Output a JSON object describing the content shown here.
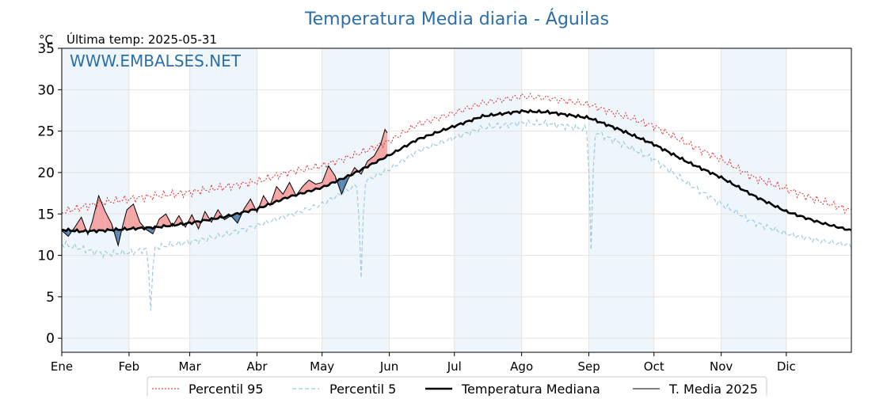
{
  "chart_data": {
    "type": "line",
    "title": "Temperatura Media diaria - Águilas",
    "unit_label": "°C",
    "subtitle": "Última temp: 2025-05-31",
    "watermark": "WWW.EMBALSES.NET",
    "ylim": [
      -1.7,
      35
    ],
    "yticks": [
      0,
      5,
      10,
      15,
      20,
      25,
      30,
      35
    ],
    "x_range_days": [
      1,
      365
    ],
    "month_labels": [
      "Ene",
      "Feb",
      "Mar",
      "Abr",
      "May",
      "Jun",
      "Jul",
      "Ago",
      "Sep",
      "Oct",
      "Nov",
      "Dic"
    ],
    "month_start_days": [
      1,
      32,
      60,
      91,
      121,
      152,
      182,
      213,
      244,
      274,
      305,
      335
    ],
    "grid": true,
    "legend_position": "bottom",
    "colors": {
      "p95": "#e31a1c",
      "p5": "#9ecae1",
      "median": "#000000",
      "current": "#000000",
      "above_fill": "#f4a6a6",
      "below_fill": "#5b86b0",
      "month_band": "#eef5fb",
      "title": "#2c6fa8",
      "watermark": "#2c6fa8"
    },
    "series": [
      {
        "name": "Percentil 95",
        "style": "dotted-red",
        "points": [
          [
            1,
            15.2
          ],
          [
            10,
            15.8
          ],
          [
            20,
            16.4
          ],
          [
            32,
            16.8
          ],
          [
            45,
            17.2
          ],
          [
            60,
            17.6
          ],
          [
            75,
            18.2
          ],
          [
            91,
            18.9
          ],
          [
            105,
            20.0
          ],
          [
            121,
            20.8
          ],
          [
            135,
            22.0
          ],
          [
            152,
            23.8
          ],
          [
            165,
            25.8
          ],
          [
            182,
            27.2
          ],
          [
            195,
            28.4
          ],
          [
            213,
            29.2
          ],
          [
            225,
            29.0
          ],
          [
            244,
            28.2
          ],
          [
            258,
            27.0
          ],
          [
            274,
            25.6
          ],
          [
            290,
            23.4
          ],
          [
            305,
            21.6
          ],
          [
            320,
            19.4
          ],
          [
            335,
            18.0
          ],
          [
            350,
            16.6
          ],
          [
            365,
            15.4
          ]
        ]
      },
      {
        "name": "Percentil 5",
        "style": "dashed-lightblue",
        "points": [
          [
            1,
            11.4
          ],
          [
            10,
            10.8
          ],
          [
            20,
            10.2
          ],
          [
            32,
            10.3
          ],
          [
            45,
            11.0
          ],
          [
            60,
            11.6
          ],
          [
            75,
            12.4
          ],
          [
            91,
            13.6
          ],
          [
            105,
            14.8
          ],
          [
            121,
            16.2
          ],
          [
            135,
            18.2
          ],
          [
            152,
            20.4
          ],
          [
            165,
            22.6
          ],
          [
            182,
            24.2
          ],
          [
            195,
            25.4
          ],
          [
            213,
            26.0
          ],
          [
            225,
            25.9
          ],
          [
            244,
            25.2
          ],
          [
            258,
            23.6
          ],
          [
            274,
            21.6
          ],
          [
            290,
            18.6
          ],
          [
            305,
            16.2
          ],
          [
            320,
            14.0
          ],
          [
            335,
            12.6
          ],
          [
            350,
            11.8
          ],
          [
            365,
            11.2
          ]
        ],
        "dips": [
          [
            42,
            3.3
          ],
          [
            139,
            7.3
          ],
          [
            245,
            10.7
          ]
        ]
      },
      {
        "name": "Temperatura Mediana",
        "style": "thick-black",
        "points": [
          [
            1,
            13.1
          ],
          [
            10,
            12.9
          ],
          [
            20,
            13.0
          ],
          [
            32,
            13.2
          ],
          [
            45,
            13.4
          ],
          [
            60,
            13.9
          ],
          [
            75,
            14.6
          ],
          [
            91,
            15.6
          ],
          [
            105,
            17.0
          ],
          [
            121,
            18.2
          ],
          [
            135,
            19.8
          ],
          [
            152,
            22.1
          ],
          [
            165,
            24.0
          ],
          [
            182,
            25.6
          ],
          [
            195,
            26.8
          ],
          [
            213,
            27.4
          ],
          [
            225,
            27.3
          ],
          [
            244,
            26.6
          ],
          [
            258,
            25.2
          ],
          [
            274,
            23.4
          ],
          [
            290,
            21.2
          ],
          [
            305,
            19.4
          ],
          [
            320,
            17.2
          ],
          [
            335,
            15.3
          ],
          [
            350,
            14.0
          ],
          [
            365,
            13.0
          ]
        ]
      },
      {
        "name": "T. Media 2025",
        "style": "thin-black",
        "points": [
          [
            1,
            13.0
          ],
          [
            4,
            12.3
          ],
          [
            7,
            13.4
          ],
          [
            10,
            14.6
          ],
          [
            13,
            12.5
          ],
          [
            15,
            14.0
          ],
          [
            18,
            17.2
          ],
          [
            21,
            15.3
          ],
          [
            24,
            13.8
          ],
          [
            27,
            11.2
          ],
          [
            29,
            13.5
          ],
          [
            31,
            15.5
          ],
          [
            34,
            16.2
          ],
          [
            37,
            14.0
          ],
          [
            40,
            13.1
          ],
          [
            43,
            12.6
          ],
          [
            46,
            14.4
          ],
          [
            49,
            15.0
          ],
          [
            52,
            13.5
          ],
          [
            55,
            14.8
          ],
          [
            58,
            13.4
          ],
          [
            61,
            14.9
          ],
          [
            64,
            13.2
          ],
          [
            67,
            15.3
          ],
          [
            70,
            14.0
          ],
          [
            73,
            15.5
          ],
          [
            76,
            14.3
          ],
          [
            79,
            14.8
          ],
          [
            82,
            13.9
          ],
          [
            85,
            15.6
          ],
          [
            88,
            16.8
          ],
          [
            91,
            15.2
          ],
          [
            94,
            17.2
          ],
          [
            97,
            16.0
          ],
          [
            100,
            18.3
          ],
          [
            103,
            17.4
          ],
          [
            106,
            18.8
          ],
          [
            109,
            17.2
          ],
          [
            112,
            18.3
          ],
          [
            115,
            19.1
          ],
          [
            118,
            18.6
          ],
          [
            121,
            18.8
          ],
          [
            124,
            20.8
          ],
          [
            127,
            19.6
          ],
          [
            130,
            17.4
          ],
          [
            133,
            19.2
          ],
          [
            136,
            20.6
          ],
          [
            139,
            19.8
          ],
          [
            142,
            21.4
          ],
          [
            145,
            22.0
          ],
          [
            148,
            23.4
          ],
          [
            150,
            25.2
          ],
          [
            151,
            24.8
          ]
        ]
      }
    ]
  }
}
